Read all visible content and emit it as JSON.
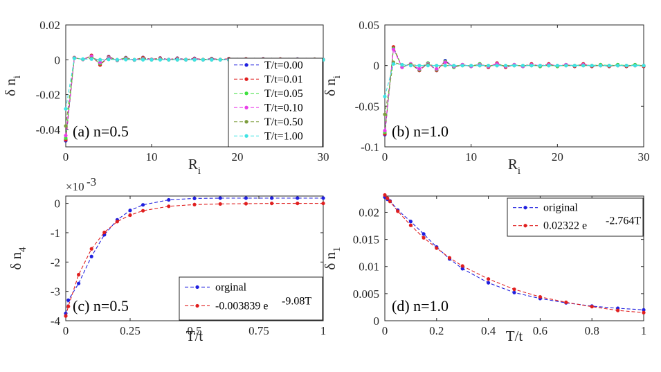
{
  "chart_data": [
    {
      "id": "a",
      "type": "line",
      "panel_label": "(a) n=0.5",
      "xlabel": "R",
      "xlabel_sub": "i",
      "ylabel": "δ n",
      "ylabel_sub": "i",
      "xlim": [
        0,
        30
      ],
      "ylim": [
        -0.05,
        0.02
      ],
      "xticks": [
        0,
        10,
        20,
        30
      ],
      "xtick_labels": [
        "0",
        "10",
        "20",
        "30"
      ],
      "yticks": [
        0.02,
        0,
        -0.02,
        -0.04
      ],
      "ytick_labels": [
        "0.02",
        "0",
        "-0.02",
        "-0.04"
      ],
      "legend_position": "right",
      "x": [
        0,
        1,
        2,
        3,
        4,
        5,
        6,
        7,
        8,
        9,
        10,
        11,
        12,
        13,
        14,
        15,
        16,
        17,
        18,
        19,
        20,
        21,
        22,
        23,
        24,
        25,
        26,
        27,
        28,
        29,
        30
      ],
      "series": [
        {
          "name": "T/t=0.00",
          "color": "#1f1fdf",
          "values": [
            -0.0465,
            0.0012,
            0.0002,
            0.0022,
            -0.0028,
            0.0018,
            -0.0003,
            0.0012,
            -0.0001,
            0.0013,
            0.0002,
            0.001,
            0.0001,
            0.0009,
            0.0001,
            0.0008,
            0.0001,
            0.0007,
            0.0001,
            0.0006,
            0.0001,
            0.0005,
            0.0001,
            0.0005,
            0.0001,
            0.0004,
            0.0001,
            0.0004,
            0.0001,
            0.0003,
            0.0001
          ]
        },
        {
          "name": "T/t=0.01",
          "color": "#e01f1f",
          "values": [
            -0.046,
            0.0012,
            0.0002,
            0.0025,
            -0.003,
            0.0016,
            -0.0002,
            0.0011,
            -0.0001,
            0.0012,
            0.0002,
            0.0009,
            0.0001,
            0.0008,
            0.0001,
            0.0007,
            0.0001,
            0.0006,
            0.0001,
            0.0006,
            0.0001,
            0.0005,
            0.0001,
            0.0004,
            0.0001,
            0.0004,
            0.0001,
            0.0003,
            0.0001,
            0.0003,
            0.0001
          ]
        },
        {
          "name": "T/t=0.05",
          "color": "#3fe03f",
          "values": [
            -0.045,
            0.0012,
            0.0002,
            0.002,
            -0.0022,
            0.0012,
            -0.0001,
            0.0009,
            0.0,
            0.0008,
            0.0001,
            0.0006,
            0.0001,
            0.0005,
            0.0001,
            0.0004,
            0.0001,
            0.0004,
            0.0001,
            0.0003,
            0.0001,
            0.0003,
            0.0001,
            0.0002,
            0.0001,
            0.0002,
            0.0001,
            0.0002,
            0.0,
            0.0002,
            0.0
          ]
        },
        {
          "name": "T/t=0.10",
          "color": "#e93ee9",
          "values": [
            -0.0435,
            0.0012,
            0.0002,
            0.002,
            -0.0015,
            0.001,
            0.0,
            0.0006,
            0.0,
            0.0005,
            0.0001,
            0.0004,
            0.0001,
            0.0003,
            0.0,
            0.0003,
            0.0,
            0.0002,
            0.0,
            0.0002,
            0.0,
            0.0002,
            0.0,
            0.0001,
            0.0,
            0.0001,
            0.0,
            0.0001,
            0.0,
            0.0001,
            0.0
          ]
        },
        {
          "name": "T/t=0.50",
          "color": "#7d9d3d",
          "values": [
            -0.038,
            0.001,
            0.0003,
            0.0008,
            0.0,
            0.0004,
            0.0,
            0.0002,
            0.0,
            0.0001,
            0.0,
            0.0001,
            0.0,
            0.0,
            0.0,
            0.0,
            0.0,
            0.0,
            0.0,
            0.0,
            0.0,
            0.0,
            0.0,
            0.0,
            0.0,
            0.0,
            0.0,
            0.0,
            0.0,
            0.0,
            0.0
          ]
        },
        {
          "name": "T/t=1.00",
          "color": "#3fe3e3",
          "values": [
            -0.0282,
            0.0008,
            0.0004,
            0.0004,
            0.0,
            0.0002,
            0.0,
            0.0001,
            0.0,
            0.0,
            0.0,
            0.0,
            0.0,
            0.0,
            0.0,
            0.0,
            0.0,
            0.0,
            0.0,
            0.0,
            0.0,
            0.0,
            0.0,
            0.0,
            0.0,
            0.0,
            0.0,
            0.0,
            0.0,
            0.0,
            0.0
          ]
        }
      ]
    },
    {
      "id": "b",
      "type": "line",
      "panel_label": "(b) n=1.0",
      "xlabel": "R",
      "xlabel_sub": "i",
      "ylabel": "δ n",
      "ylabel_sub": "i",
      "xlim": [
        0,
        30
      ],
      "ylim": [
        -0.1,
        0.05
      ],
      "xticks": [
        0,
        10,
        20,
        30
      ],
      "xtick_labels": [
        "0",
        "10",
        "20",
        "30"
      ],
      "yticks": [
        0.05,
        0,
        -0.05,
        -0.1
      ],
      "ytick_labels": [
        "0.05",
        "0",
        "-0.05",
        "-0.1"
      ],
      "x": [
        0,
        1,
        2,
        3,
        4,
        5,
        6,
        7,
        8,
        9,
        10,
        11,
        12,
        13,
        14,
        15,
        16,
        17,
        18,
        19,
        20,
        21,
        22,
        23,
        24,
        25,
        26,
        27,
        28,
        29,
        30
      ],
      "series": [
        {
          "name": "T/t=0.00",
          "color": "#1f1fdf",
          "values": [
            -0.085,
            0.022,
            -0.002,
            0.002,
            -0.006,
            0.003,
            -0.006,
            0.006,
            -0.002,
            0.001,
            -0.001,
            0.002,
            -0.002,
            0.003,
            -0.002,
            0.001,
            -0.001,
            0.002,
            -0.001,
            0.002,
            -0.001,
            0.001,
            -0.001,
            0.002,
            -0.001,
            0.001,
            -0.001,
            0.001,
            -0.001,
            0.001,
            -0.001
          ]
        },
        {
          "name": "T/t=0.01",
          "color": "#e01f1f",
          "values": [
            -0.084,
            0.023,
            -0.002,
            0.002,
            -0.006,
            0.003,
            -0.006,
            0.005,
            -0.002,
            0.001,
            -0.001,
            0.002,
            -0.002,
            0.003,
            -0.002,
            0.001,
            -0.001,
            0.002,
            -0.001,
            0.002,
            -0.001,
            0.001,
            -0.001,
            0.002,
            -0.001,
            0.001,
            -0.001,
            0.001,
            -0.001,
            0.001,
            -0.001
          ]
        },
        {
          "name": "T/t=0.05",
          "color": "#3fe03f",
          "values": [
            -0.082,
            0.021,
            -0.002,
            0.002,
            -0.005,
            0.003,
            -0.005,
            0.005,
            -0.002,
            0.001,
            -0.001,
            0.002,
            -0.001,
            0.002,
            -0.001,
            0.001,
            -0.001,
            0.001,
            -0.001,
            0.001,
            -0.001,
            0.001,
            0.0,
            0.001,
            0.0,
            0.001,
            0.0,
            0.001,
            0.0,
            0.001,
            0.0
          ]
        },
        {
          "name": "T/t=0.10",
          "color": "#e93ee9",
          "values": [
            -0.08,
            0.02,
            -0.002,
            0.002,
            -0.004,
            0.002,
            -0.004,
            0.004,
            -0.001,
            0.001,
            -0.001,
            0.001,
            -0.001,
            0.002,
            -0.001,
            0.001,
            -0.001,
            0.001,
            0.0,
            0.001,
            0.0,
            0.001,
            0.0,
            0.001,
            0.0,
            0.0,
            0.0,
            0.0,
            0.0,
            0.0,
            0.0
          ]
        },
        {
          "name": "T/t=0.50",
          "color": "#7d9d3d",
          "values": [
            -0.06,
            0.004,
            0.001,
            0.001,
            0.0,
            0.001,
            0.0,
            0.0,
            0.0,
            0.0,
            0.0,
            0.0,
            0.0,
            0.0,
            0.0,
            0.0,
            0.0,
            0.0,
            0.0,
            0.0,
            0.0,
            0.0,
            0.0,
            0.0,
            0.0,
            0.0,
            0.0,
            0.0,
            0.0,
            0.0,
            0.0
          ]
        },
        {
          "name": "T/t=1.00",
          "color": "#3fe3e3",
          "values": [
            -0.038,
            0.002,
            0.001,
            0.0,
            0.0,
            0.0,
            0.0,
            0.0,
            0.0,
            0.0,
            0.0,
            0.0,
            0.0,
            0.0,
            0.0,
            0.0,
            0.0,
            0.0,
            0.0,
            0.0,
            0.0,
            0.0,
            0.0,
            0.0,
            0.0,
            0.0,
            0.0,
            0.0,
            0.0,
            0.0,
            0.0
          ]
        }
      ]
    },
    {
      "id": "c",
      "type": "line",
      "panel_label": "(c) n=0.5",
      "xlabel": "T/t",
      "ylabel": "δ n",
      "ylabel_sub": "4",
      "exponent_label": "×10",
      "exponent_power": "-3",
      "xlim": [
        0,
        1
      ],
      "ylim": [
        -4,
        0.25
      ],
      "xticks": [
        0,
        0.25,
        0.5,
        0.75,
        1
      ],
      "xtick_labels": [
        "0",
        "0.25",
        "0.5",
        "0.75",
        "1"
      ],
      "yticks": [
        0,
        -1,
        -2,
        -3,
        -4
      ],
      "ytick_labels": [
        "0",
        "-1",
        "-2",
        "-3",
        "-4"
      ],
      "legend_position": "bottom-right",
      "series": [
        {
          "name": "orginal",
          "color": "#1f1fdf",
          "x": [
            0,
            0.01,
            0.05,
            0.1,
            0.15,
            0.2,
            0.25,
            0.3,
            0.4,
            0.5,
            0.6,
            0.7,
            0.8,
            0.9,
            1.0
          ],
          "values": [
            -3.75,
            -3.3,
            -2.73,
            -1.81,
            -1.07,
            -0.56,
            -0.24,
            -0.05,
            0.12,
            0.17,
            0.18,
            0.18,
            0.18,
            0.18,
            0.18
          ]
        },
        {
          "name": "-0.003839 e",
          "name_sup": "-9.08T",
          "color": "#e01f1f",
          "x": [
            0,
            0.01,
            0.05,
            0.1,
            0.15,
            0.2,
            0.25,
            0.3,
            0.4,
            0.5,
            0.6,
            0.7,
            0.8,
            0.9,
            1.0
          ],
          "values": [
            -3.84,
            -3.51,
            -2.43,
            -1.55,
            -0.99,
            -0.62,
            -0.4,
            -0.25,
            -0.1,
            -0.04,
            -0.02,
            -0.01,
            0.0,
            0.0,
            0.0
          ]
        }
      ]
    },
    {
      "id": "d",
      "type": "line",
      "panel_label": "(d) n=1.0",
      "xlabel": "T/t",
      "ylabel": "δ n",
      "ylabel_sub": "1",
      "xlim": [
        0,
        1
      ],
      "ylim": [
        0,
        0.023
      ],
      "xticks": [
        0,
        0.2,
        0.4,
        0.6,
        0.8,
        1
      ],
      "xtick_labels": [
        "0",
        "0.2",
        "0.4",
        "0.6",
        "0.8",
        "1"
      ],
      "yticks": [
        0.02,
        0.015,
        0.01,
        0.005,
        0
      ],
      "ytick_labels": [
        "0.02",
        "0.015",
        "0.01",
        "0.005",
        "0"
      ],
      "legend_position": "top-right",
      "series": [
        {
          "name": "original",
          "color": "#1f1fdf",
          "x": [
            0,
            0.01,
            0.02,
            0.05,
            0.1,
            0.15,
            0.2,
            0.25,
            0.3,
            0.4,
            0.5,
            0.6,
            0.7,
            0.8,
            0.9,
            1.0
          ],
          "values": [
            0.0228,
            0.0224,
            0.0221,
            0.0204,
            0.0183,
            0.016,
            0.0136,
            0.0114,
            0.0096,
            0.007,
            0.0052,
            0.0041,
            0.0033,
            0.0027,
            0.0023,
            0.002
          ]
        },
        {
          "name": "0.02322 e",
          "name_sup": "-2.764T",
          "color": "#e01f1f",
          "x": [
            0,
            0.01,
            0.02,
            0.05,
            0.1,
            0.15,
            0.2,
            0.25,
            0.3,
            0.4,
            0.5,
            0.6,
            0.7,
            0.8,
            0.9,
            1.0
          ],
          "values": [
            0.0232,
            0.0226,
            0.022,
            0.0202,
            0.0176,
            0.0153,
            0.0134,
            0.0116,
            0.0101,
            0.0077,
            0.0058,
            0.0044,
            0.0034,
            0.0026,
            0.0019,
            0.0015
          ]
        }
      ]
    }
  ]
}
